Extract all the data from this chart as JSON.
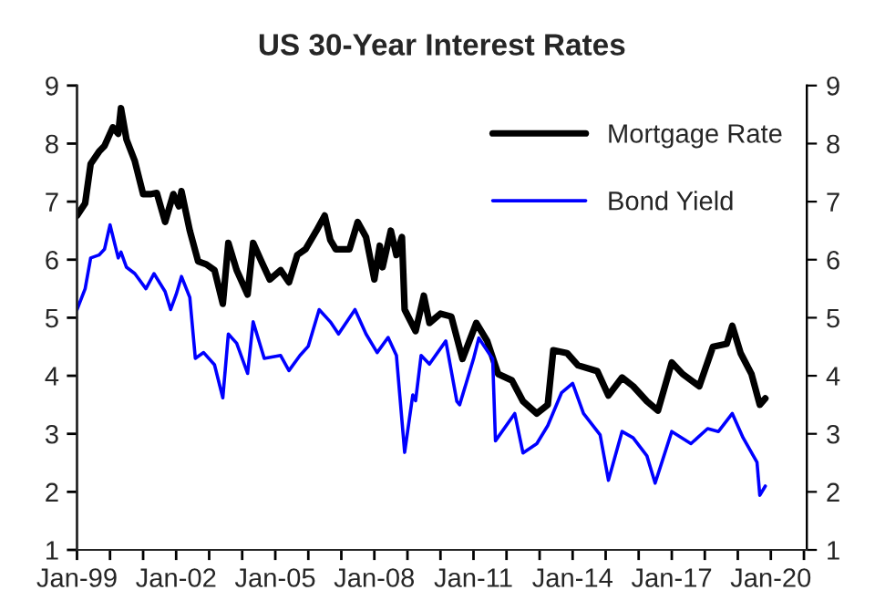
{
  "chart_data": {
    "type": "line",
    "title": "US 30-Year Interest Rates",
    "xlim": [
      "1999-01-01",
      "2021-02-01"
    ],
    "xticks": [
      {
        "value": "1999-01-01",
        "label": "Jan-99"
      },
      {
        "value": "2000-01-01",
        "label": null
      },
      {
        "value": "2001-01-01",
        "label": null
      },
      {
        "value": "2002-01-01",
        "label": "Jan-02"
      },
      {
        "value": "2003-01-01",
        "label": null
      },
      {
        "value": "2004-01-01",
        "label": null
      },
      {
        "value": "2005-01-01",
        "label": "Jan-05"
      },
      {
        "value": "2006-01-01",
        "label": null
      },
      {
        "value": "2007-01-01",
        "label": null
      },
      {
        "value": "2008-01-01",
        "label": "Jan-08"
      },
      {
        "value": "2009-01-01",
        "label": null
      },
      {
        "value": "2010-01-01",
        "label": null
      },
      {
        "value": "2011-01-01",
        "label": "Jan-11"
      },
      {
        "value": "2012-01-01",
        "label": null
      },
      {
        "value": "2013-01-01",
        "label": null
      },
      {
        "value": "2014-01-01",
        "label": "Jan-14"
      },
      {
        "value": "2015-01-01",
        "label": null
      },
      {
        "value": "2016-01-01",
        "label": null
      },
      {
        "value": "2017-01-01",
        "label": "Jan-17"
      },
      {
        "value": "2018-01-01",
        "label": null
      },
      {
        "value": "2019-01-01",
        "label": null
      },
      {
        "value": "2020-01-01",
        "label": "Jan-20"
      },
      {
        "value": "2021-01-01",
        "label": null
      }
    ],
    "ylim": [
      1,
      9
    ],
    "yticks": [
      1,
      2,
      3,
      4,
      5,
      6,
      7,
      8,
      9
    ],
    "y2lim": [
      1,
      9
    ],
    "y2ticks": [
      1,
      2,
      3,
      4,
      5,
      6,
      7,
      8,
      9
    ],
    "grid": false,
    "legend": "top right",
    "line_style": "solid",
    "marker": "none",
    "series": [
      {
        "name": "Mortgage Rate",
        "color": "#000000",
        "x": [
          "1999-01",
          "1999-04",
          "1999-06",
          "1999-09",
          "1999-11",
          "2000-02",
          "2000-04",
          "2000-05",
          "2000-07",
          "2000-10",
          "2001-01",
          "2001-04",
          "2001-06",
          "2001-09",
          "2001-12",
          "2002-02",
          "2002-03",
          "2002-06",
          "2002-09",
          "2002-12",
          "2003-03",
          "2003-06",
          "2003-08",
          "2003-11",
          "2004-03",
          "2004-05",
          "2004-08",
          "2004-11",
          "2005-03",
          "2005-06",
          "2005-09",
          "2005-12",
          "2006-04",
          "2006-07",
          "2006-09",
          "2006-11",
          "2007-04",
          "2007-07",
          "2007-10",
          "2008-01",
          "2008-03",
          "2008-04",
          "2008-07",
          "2008-09",
          "2008-11",
          "2008-12",
          "2009-04",
          "2009-07",
          "2009-09",
          "2010-01",
          "2010-05",
          "2010-09",
          "2011-02",
          "2011-06",
          "2011-10",
          "2012-03",
          "2012-07",
          "2012-12",
          "2013-04",
          "2013-06",
          "2013-11",
          "2014-03",
          "2014-10",
          "2015-02",
          "2015-07",
          "2015-11",
          "2016-04",
          "2016-08",
          "2017-01",
          "2017-05",
          "2017-11",
          "2018-04",
          "2018-09",
          "2018-11",
          "2019-02",
          "2019-06",
          "2019-09",
          "2019-11"
        ],
        "values": [
          6.76,
          6.97,
          7.65,
          7.86,
          7.96,
          8.28,
          8.17,
          8.61,
          8.07,
          7.7,
          7.13,
          7.13,
          7.15,
          6.65,
          7.13,
          6.92,
          7.18,
          6.5,
          5.97,
          5.92,
          5.82,
          5.24,
          6.29,
          5.82,
          5.4,
          6.29,
          5.97,
          5.66,
          5.82,
          5.61,
          6.08,
          6.18,
          6.5,
          6.76,
          6.34,
          6.18,
          6.18,
          6.65,
          6.39,
          5.66,
          6.24,
          5.87,
          6.5,
          6.08,
          6.39,
          5.14,
          4.77,
          5.38,
          4.91,
          5.07,
          5.02,
          4.29,
          4.91,
          4.6,
          4.03,
          3.92,
          3.56,
          3.35,
          3.5,
          4.44,
          4.39,
          4.18,
          4.08,
          3.66,
          3.97,
          3.82,
          3.56,
          3.4,
          4.23,
          4.03,
          3.82,
          4.5,
          4.55,
          4.86,
          4.39,
          4.03,
          3.5,
          3.61
        ]
      },
      {
        "name": "Bond Yield",
        "color": "#0000ff",
        "x": [
          "1999-01",
          "1999-04",
          "1999-06",
          "1999-09",
          "1999-11",
          "2000-01",
          "2000-04",
          "2000-05",
          "2000-07",
          "2000-10",
          "2001-02",
          "2001-05",
          "2001-09",
          "2001-11",
          "2002-01",
          "2002-03",
          "2002-06",
          "2002-08",
          "2002-11",
          "2003-03",
          "2003-06",
          "2003-08",
          "2003-11",
          "2004-03",
          "2004-05",
          "2004-09",
          "2005-03",
          "2005-06",
          "2005-10",
          "2006-01",
          "2006-05",
          "2006-09",
          "2006-12",
          "2007-06",
          "2007-10",
          "2008-02",
          "2008-06",
          "2008-09",
          "2008-12",
          "2009-03",
          "2009-04",
          "2009-06",
          "2009-09",
          "2010-03",
          "2010-07",
          "2010-08",
          "2011-01",
          "2011-03",
          "2011-08",
          "2011-09",
          "2012-04",
          "2012-07",
          "2012-12",
          "2013-04",
          "2013-09",
          "2014-01",
          "2014-05",
          "2014-11",
          "2015-02",
          "2015-07",
          "2015-11",
          "2016-04",
          "2016-07",
          "2017-01",
          "2017-08",
          "2018-02",
          "2018-06",
          "2018-11",
          "2019-03",
          "2019-08",
          "2019-09",
          "2019-11"
        ],
        "values": [
          5.14,
          5.5,
          6.03,
          6.08,
          6.18,
          6.6,
          6.03,
          6.13,
          5.87,
          5.76,
          5.5,
          5.76,
          5.45,
          5.14,
          5.4,
          5.71,
          5.35,
          4.3,
          4.4,
          4.19,
          3.62,
          4.72,
          4.56,
          4.04,
          4.93,
          4.3,
          4.35,
          4.09,
          4.35,
          4.51,
          5.14,
          4.93,
          4.72,
          5.14,
          4.72,
          4.4,
          4.66,
          4.35,
          2.68,
          3.67,
          3.57,
          4.35,
          4.2,
          4.6,
          3.56,
          3.5,
          4.29,
          4.65,
          4.29,
          2.88,
          3.35,
          2.67,
          2.83,
          3.14,
          3.71,
          3.87,
          3.35,
          2.98,
          2.2,
          3.04,
          2.93,
          2.62,
          2.15,
          3.04,
          2.83,
          3.09,
          3.04,
          3.35,
          2.93,
          2.51,
          1.94,
          2.1
        ]
      }
    ]
  }
}
